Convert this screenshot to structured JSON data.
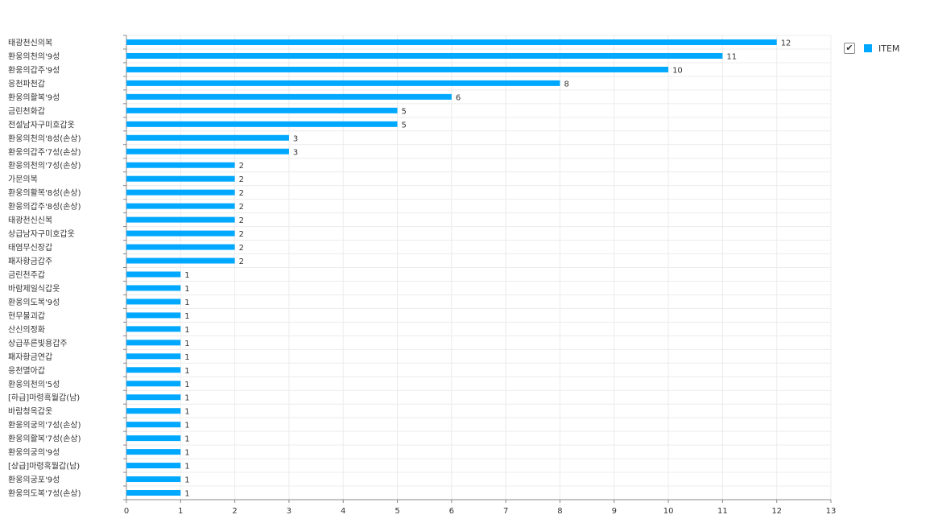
{
  "chart_data": {
    "type": "bar",
    "orientation": "horizontal",
    "categories": [
      "태광천신의복",
      "환웅의천의'9성",
      "환웅의갑주'9성",
      "응천파천갑",
      "환웅의활복'9성",
      "금린천화갑",
      "전설남자구미호갑옷",
      "환웅의천의'8성(손상)",
      "환웅의갑주'7성(손상)",
      "환웅의천의'7성(손상)",
      "가문의복",
      "환웅의활복'8성(손상)",
      "환웅의갑주'8성(손상)",
      "태광천신신복",
      "상급남자구미호갑옷",
      "태염무신장갑",
      "패자황금갑주",
      "금린천주갑",
      "바람제일식갑옷",
      "환웅의도복'9성",
      "현무불괴갑",
      "산신의정화",
      "상급푸른빛용갑주",
      "패자황금연갑",
      "응천멸아갑",
      "환웅의천의'5성",
      "[하급]마령흑월갑(남)",
      "바람청옥갑옷",
      "환웅의궁의'7성(손상)",
      "환웅의활복'7성(손상)",
      "환웅의궁의'9성",
      "[상급]마령흑월갑(남)",
      "환웅의궁포'9성",
      "환웅의도복'7성(손상)"
    ],
    "series": [
      {
        "name": "ITEM",
        "values": [
          12,
          11,
          10,
          8,
          6,
          5,
          5,
          3,
          3,
          2,
          2,
          2,
          2,
          2,
          2,
          2,
          2,
          1,
          1,
          1,
          1,
          1,
          1,
          1,
          1,
          1,
          1,
          1,
          1,
          1,
          1,
          1,
          1,
          1
        ]
      }
    ],
    "xlim": [
      0,
      13
    ],
    "xticks": [
      "0",
      "1",
      "2",
      "3",
      "4",
      "5",
      "6",
      "7",
      "8",
      "9",
      "10",
      "11",
      "12",
      "13"
    ],
    "grid": true,
    "legend_position": "top-right",
    "legend_checked": true,
    "colors": {
      "bar": "#00a8ff",
      "grid": "#ececec",
      "axis": "#888888",
      "text": "#333333"
    }
  }
}
